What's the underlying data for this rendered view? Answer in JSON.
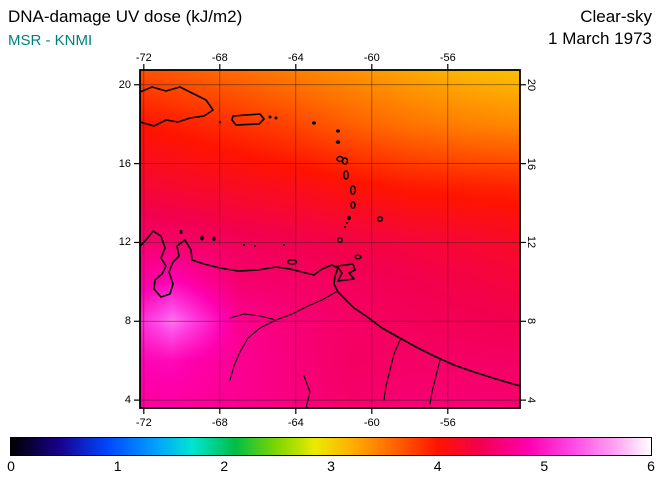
{
  "header": {
    "title": "DNA-damage UV dose (kJ/m2)",
    "source": "MSR - KNMI",
    "condition": "Clear-sky",
    "date": "1 March 1973"
  },
  "colors": {
    "title_text": "#000000",
    "source_text": "#008080",
    "background": "#ffffff"
  },
  "chart_data": {
    "type": "heatmap",
    "title": "DNA-damage UV dose (kJ/m2)",
    "subtitle": "Clear-sky, 1 March 1973",
    "source": "MSR - KNMI",
    "units": "kJ/m2",
    "region": "Caribbean and northern South America (lon/lat map)",
    "lon_range": [
      -72.2,
      -52.2
    ],
    "lat_range": [
      3.6,
      20.75
    ],
    "lon_ticks": [
      -72,
      -68,
      -64,
      -60,
      -56
    ],
    "lat_ticks": [
      20,
      16,
      12,
      8,
      4
    ],
    "lon_tick_labels": [
      "-72",
      "-68",
      "-64",
      "-60",
      "-56"
    ],
    "lat_tick_labels": [
      "20",
      "16",
      "12",
      "8",
      "4"
    ],
    "grid_lines": true,
    "grid": {
      "lons": [
        -72.2,
        -70.5,
        -67,
        -64,
        -61,
        -58,
        -55,
        -52.2
      ],
      "lats": [
        20.75,
        18,
        15,
        12,
        10,
        8,
        6,
        3.6
      ],
      "values": [
        [
          3.7,
          3.65,
          3.55,
          3.45,
          3.35,
          3.25,
          3.15,
          3.1
        ],
        [
          4.0,
          3.95,
          3.85,
          3.75,
          3.62,
          3.52,
          3.45,
          3.4
        ],
        [
          4.25,
          4.22,
          4.15,
          4.1,
          4.02,
          3.95,
          3.92,
          3.9
        ],
        [
          4.55,
          4.52,
          4.45,
          4.4,
          4.35,
          4.3,
          4.25,
          4.2
        ],
        [
          4.75,
          4.9,
          4.55,
          4.5,
          4.45,
          4.4,
          4.35,
          4.3
        ],
        [
          5.1,
          5.45,
          4.7,
          4.58,
          4.5,
          4.45,
          4.42,
          4.4
        ],
        [
          4.88,
          4.9,
          4.72,
          4.6,
          4.48,
          4.5,
          4.5,
          4.48
        ],
        [
          4.75,
          4.78,
          4.7,
          4.62,
          4.52,
          4.58,
          4.58,
          4.55
        ]
      ]
    },
    "colorbar": {
      "min": 0,
      "max": 6,
      "ticks": [
        0,
        1,
        2,
        3,
        4,
        5,
        6
      ],
      "tick_labels": [
        "0",
        "1",
        "2",
        "3",
        "4",
        "5",
        "6"
      ],
      "stops": [
        [
          0.0,
          [
            0,
            0,
            0
          ]
        ],
        [
          0.45,
          [
            25,
            0,
            140
          ]
        ],
        [
          0.9,
          [
            0,
            70,
            255
          ]
        ],
        [
          1.35,
          [
            0,
            160,
            255
          ]
        ],
        [
          1.7,
          [
            0,
            230,
            210
          ]
        ],
        [
          2.1,
          [
            0,
            190,
            70
          ]
        ],
        [
          2.5,
          [
            130,
            215,
            0
          ]
        ],
        [
          2.85,
          [
            235,
            235,
            0
          ]
        ],
        [
          3.2,
          [
            255,
            175,
            0
          ]
        ],
        [
          3.6,
          [
            255,
            100,
            0
          ]
        ],
        [
          4.0,
          [
            255,
            20,
            0
          ]
        ],
        [
          4.4,
          [
            242,
            0,
            80
          ]
        ],
        [
          4.85,
          [
            255,
            0,
            175
          ]
        ],
        [
          5.25,
          [
            255,
            70,
            230
          ]
        ],
        [
          5.65,
          [
            255,
            160,
            242
          ]
        ],
        [
          6.0,
          [
            255,
            255,
            255
          ]
        ]
      ]
    }
  }
}
